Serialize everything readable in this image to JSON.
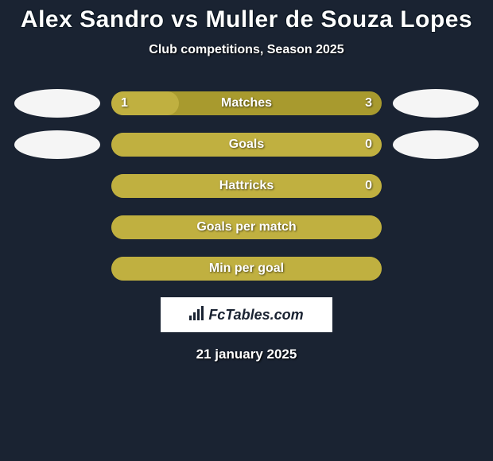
{
  "title": "Alex Sandro vs Muller de Souza Lopes",
  "subtitle": "Club competitions, Season 2025",
  "date": "21 january 2025",
  "logo": "FcTables.com",
  "colors": {
    "background": "#1a2332",
    "bar_bg": "#a89a2e",
    "bar_fill": "#c0b040",
    "ellipse_left": "#f5f5f5",
    "ellipse_right": "#f5f5f5",
    "text": "#ffffff"
  },
  "rows": [
    {
      "label": "Matches",
      "left_value": "1",
      "right_value": "3",
      "fill_pct": 25,
      "show_left_ellipse": true,
      "show_right_ellipse": true
    },
    {
      "label": "Goals",
      "left_value": "",
      "right_value": "0",
      "fill_pct": 100,
      "show_left_ellipse": true,
      "show_right_ellipse": true
    },
    {
      "label": "Hattricks",
      "left_value": "",
      "right_value": "0",
      "fill_pct": 100,
      "show_left_ellipse": false,
      "show_right_ellipse": false
    },
    {
      "label": "Goals per match",
      "left_value": "",
      "right_value": "",
      "fill_pct": 100,
      "show_left_ellipse": false,
      "show_right_ellipse": false
    },
    {
      "label": "Min per goal",
      "left_value": "",
      "right_value": "",
      "fill_pct": 100,
      "show_left_ellipse": false,
      "show_right_ellipse": false
    }
  ]
}
